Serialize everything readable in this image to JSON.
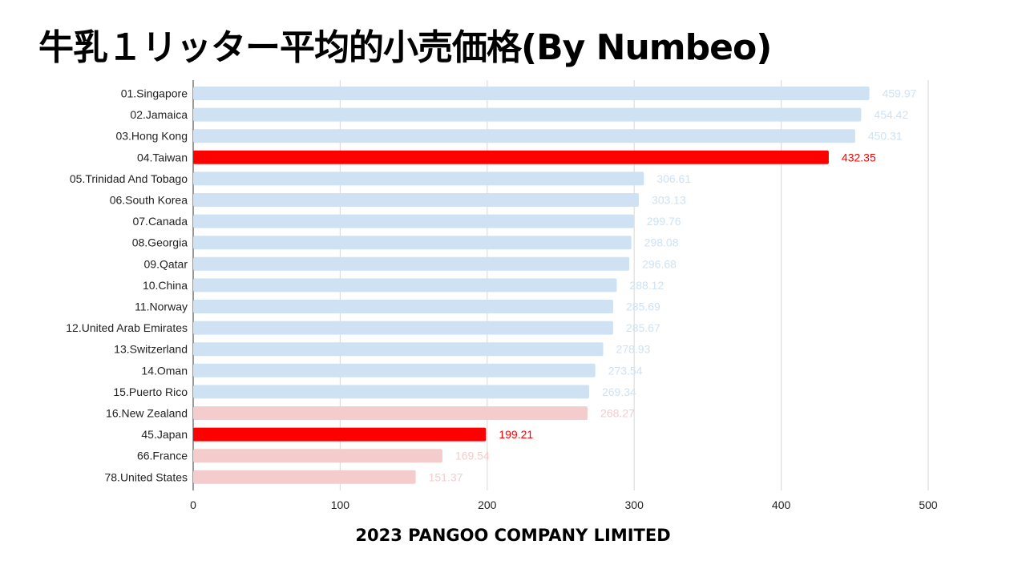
{
  "title": "牛乳１リッター平均的小売価格(By Numbeo)",
  "footer": "2023 PANGOO COMPANY LIMITED",
  "colors": {
    "default_bar": "#cfe2f3",
    "highlight_bar": "#ff0000",
    "pink_bar": "#f4cccc",
    "gridline": "#dddddd"
  },
  "chart_data": {
    "type": "bar",
    "orientation": "horizontal",
    "categories": [
      "01.Singapore",
      "02.Jamaica",
      "03.Hong Kong",
      "04.Taiwan",
      "05.Trinidad And Tobago",
      "06.South Korea",
      "07.Canada",
      "08.Georgia",
      "09.Qatar",
      "10.China",
      "11.Norway",
      "12.United Arab Emirates",
      "13.Switzerland",
      "14.Oman",
      "15.Puerto Rico",
      "16.New Zealand",
      "45.Japan",
      "66.France",
      "78.United States"
    ],
    "values": [
      459.97,
      454.42,
      450.31,
      432.35,
      306.61,
      303.13,
      299.76,
      298.08,
      296.68,
      288.12,
      285.69,
      285.67,
      278.93,
      273.54,
      269.34,
      268.27,
      199.21,
      169.54,
      151.37
    ],
    "value_labels": [
      "459.97",
      "454.42",
      "450.31",
      "432.35",
      "306.61",
      "303.13",
      "299.76",
      "298.08",
      "296.68",
      "288.12",
      "285.69",
      "285.67",
      "278.93",
      "273.54",
      "269.34",
      "268.27",
      "199.21",
      "169.54",
      "151.37"
    ],
    "bar_colors": [
      "default",
      "default",
      "default",
      "highlight",
      "default",
      "default",
      "default",
      "default",
      "default",
      "default",
      "default",
      "default",
      "default",
      "default",
      "default",
      "pink",
      "highlight",
      "pink",
      "pink"
    ],
    "x_ticks": [
      0,
      100,
      200,
      300,
      400,
      500
    ],
    "xlim": [
      0,
      500
    ],
    "grid": true,
    "legend": "none"
  }
}
